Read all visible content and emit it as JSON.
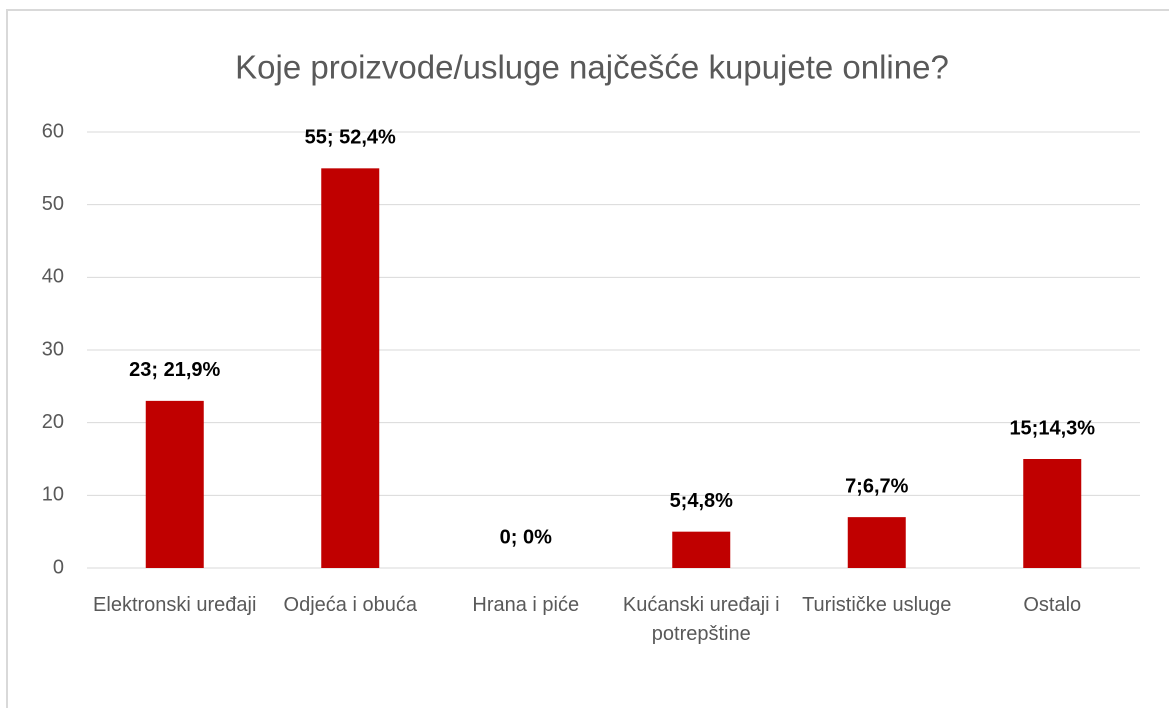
{
  "chart_data": {
    "type": "bar",
    "title": "Koje proizvode/usluge najčešće kupujete online?",
    "categories": [
      "Elektronski uređaji",
      "Odjeća i obuća",
      "Hrana i piće",
      "Kućanski uređaji i potrepštine",
      "Turističke usluge",
      "Ostalo"
    ],
    "values": [
      23,
      55,
      0,
      5,
      7,
      15
    ],
    "value_labels": [
      "23; 21,9%",
      "55; 52,4%",
      "0; 0%",
      "5;4,8%",
      "7;6,7%",
      "15;14,3%"
    ],
    "color": "#c00000",
    "ylim": [
      0,
      60
    ],
    "yticks": [
      0,
      10,
      20,
      30,
      40,
      50,
      60
    ],
    "grid": true
  }
}
